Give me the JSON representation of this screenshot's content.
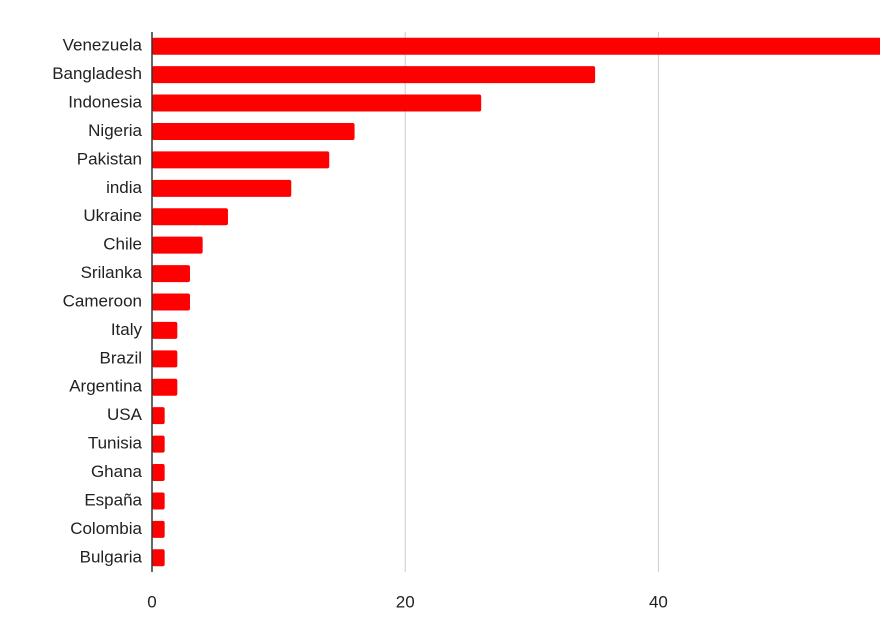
{
  "chart_data": {
    "type": "bar",
    "orientation": "horizontal",
    "categories": [
      "Venezuela",
      "Bangladesh",
      "Indonesia",
      "Nigeria",
      "Pakistan",
      "india",
      "Ukraine",
      "Chile",
      "Srilanka",
      "Cameroon",
      "Italy",
      "Brazil",
      "Argentina",
      "USA",
      "Tunisia",
      "Ghana",
      "España",
      "Colombia",
      "Bulgaria"
    ],
    "values": [
      58,
      35,
      26,
      16,
      14,
      11,
      6,
      4,
      3,
      3,
      2,
      2,
      2,
      1,
      1,
      1,
      1,
      1,
      1
    ],
    "color": "#ff0000",
    "xlim": [
      0,
      57.5
    ],
    "xticks": [
      0,
      20,
      40
    ],
    "grid": true
  }
}
